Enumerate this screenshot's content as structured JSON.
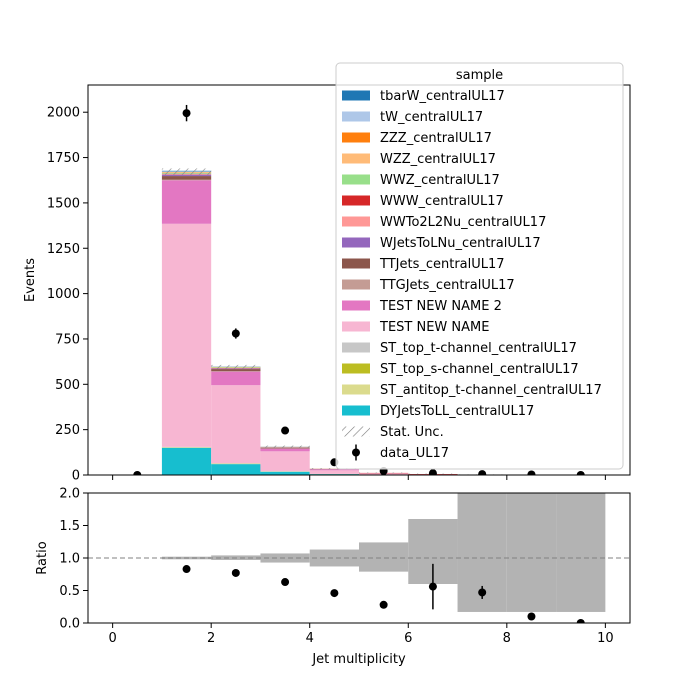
{
  "chart_data": [
    {
      "type": "bar",
      "panel": "main",
      "stacked": true,
      "xlim": [
        -0.5,
        10.5
      ],
      "ylim": [
        0,
        2150
      ],
      "ylabel": "Events",
      "xticks": [
        0,
        2,
        4,
        6,
        8,
        10
      ],
      "yticks": [
        0,
        250,
        500,
        750,
        1000,
        1250,
        1500,
        1750,
        2000
      ],
      "bin_edges": [
        0,
        1,
        2,
        3,
        4,
        5,
        6,
        7,
        8,
        9,
        10
      ],
      "legend": {
        "title": "sample",
        "placement": "top-right"
      },
      "series": [
        {
          "name": "DYJetsToLL_centralUL17",
          "color": "#17becf",
          "values": [
            0,
            150,
            60,
            18,
            5,
            2,
            1,
            0.5,
            0,
            0
          ]
        },
        {
          "name": "ST_antitop_t-channel_centralUL17",
          "color": "#dbdb8d",
          "values": [
            0,
            2,
            2,
            1,
            0.5,
            0,
            0,
            0,
            0,
            0
          ]
        },
        {
          "name": "ST_top_s-channel_centralUL17",
          "color": "#bcbd22",
          "values": [
            0,
            1,
            1,
            0.5,
            0,
            0,
            0,
            0,
            0,
            0
          ]
        },
        {
          "name": "ST_top_t-channel_centralUL17",
          "color": "#c7c7c7",
          "values": [
            0,
            2,
            2,
            1,
            0.5,
            0,
            0,
            0,
            0,
            0
          ]
        },
        {
          "name": "TEST NEW NAME",
          "color": "#f7b6d2",
          "values": [
            0,
            1230,
            430,
            110,
            20,
            6,
            2,
            0.8,
            0,
            0
          ]
        },
        {
          "name": "TEST NEW NAME 2",
          "color": "#e377c2",
          "values": [
            0,
            240,
            75,
            15,
            5,
            1,
            0.5,
            0,
            0,
            0
          ]
        },
        {
          "name": "TTGJets_centralUL17",
          "color": "#c49c94",
          "values": [
            0,
            3,
            2,
            1,
            0.5,
            0,
            0,
            0,
            0,
            0
          ]
        },
        {
          "name": "TTJets_centralUL17",
          "color": "#8c564b",
          "values": [
            0,
            20,
            12,
            4,
            1,
            0.5,
            0,
            0,
            0,
            0
          ]
        },
        {
          "name": "WJetsToLNu_centralUL17",
          "color": "#9467bd",
          "values": [
            0,
            8,
            3,
            1,
            0.5,
            0,
            0,
            0,
            0,
            0
          ]
        },
        {
          "name": "WWTo2L2Nu_centralUL17",
          "color": "#ff9896",
          "values": [
            0,
            4,
            2,
            0.5,
            0,
            0,
            0,
            0,
            0,
            0
          ]
        },
        {
          "name": "WWW_centralUL17",
          "color": "#d62728",
          "values": [
            0,
            1,
            1,
            1,
            1,
            2,
            2,
            0.5,
            0,
            0
          ]
        },
        {
          "name": "WWZ_centralUL17",
          "color": "#98df8a",
          "values": [
            0,
            5,
            3,
            1,
            0.5,
            0,
            0,
            0,
            0,
            0
          ]
        },
        {
          "name": "WZZ_centralUL17",
          "color": "#ffbb78",
          "values": [
            0,
            3,
            2,
            0.5,
            0,
            0,
            0,
            0,
            0,
            0
          ]
        },
        {
          "name": "ZZZ_centralUL17",
          "color": "#ff7f0e",
          "values": [
            0,
            2,
            1,
            0.5,
            0,
            0,
            0,
            0,
            0,
            0
          ]
        },
        {
          "name": "tW_centralUL17",
          "color": "#aec7e8",
          "values": [
            0,
            3,
            1,
            0.5,
            0,
            0,
            0,
            0,
            0,
            0
          ]
        },
        {
          "name": "tbarW_centralUL17",
          "color": "#1f77b4",
          "values": [
            0,
            3,
            1,
            0.5,
            0,
            0,
            0,
            0,
            0,
            0
          ]
        }
      ],
      "stat_unc": {
        "name": "Stat. Unc.",
        "down": [
          0,
          1655,
          585,
          150,
          32,
          9,
          4,
          1.2,
          0,
          0
        ],
        "up": [
          0,
          1690,
          607,
          162,
          38,
          14,
          8,
          3.5,
          0,
          0
        ]
      },
      "data": {
        "name": "data_UL17",
        "x": [
          0.5,
          1.5,
          2.5,
          3.5,
          4.5,
          5.5,
          6.5,
          7.5,
          8.5,
          9.5
        ],
        "y": [
          0,
          1995,
          780,
          245,
          70,
          22,
          10,
          5,
          3,
          0
        ],
        "err": [
          0,
          45,
          28,
          16,
          8,
          5,
          3,
          2,
          2,
          0
        ]
      },
      "legend_order": [
        "tbarW_centralUL17",
        "tW_centralUL17",
        "ZZZ_centralUL17",
        "WZZ_centralUL17",
        "WWZ_centralUL17",
        "WWW_centralUL17",
        "WWTo2L2Nu_centralUL17",
        "WJetsToLNu_centralUL17",
        "TTJets_centralUL17",
        "TTGJets_centralUL17",
        "TEST NEW NAME 2",
        "TEST NEW NAME",
        "ST_top_t-channel_centralUL17",
        "ST_top_s-channel_centralUL17",
        "ST_antitop_t-channel_centralUL17",
        "DYJetsToLL_centralUL17",
        "Stat. Unc.",
        "data_UL17"
      ]
    },
    {
      "type": "scatter",
      "panel": "ratio",
      "xlim": [
        -0.5,
        10.5
      ],
      "ylim": [
        0,
        2.0
      ],
      "xlabel": "Jet multiplicity",
      "ylabel": "Ratio",
      "xticks": [
        0,
        2,
        4,
        6,
        8,
        10
      ],
      "yticks": [
        0.0,
        0.5,
        1.0,
        1.5,
        2.0
      ],
      "reference_line": 1.0,
      "unc_band": {
        "bin_edges": [
          0,
          1,
          2,
          3,
          4,
          5,
          6,
          7,
          8,
          9,
          10
        ],
        "down": [
          null,
          0.98,
          0.97,
          0.93,
          0.87,
          0.79,
          0.6,
          0.17,
          0.17,
          0.17
        ],
        "up": [
          null,
          1.02,
          1.04,
          1.07,
          1.13,
          1.24,
          1.6,
          2.0,
          2.0,
          2.0
        ]
      },
      "x": [
        1.5,
        2.5,
        3.5,
        4.5,
        5.5,
        6.5,
        7.5,
        8.5,
        9.5
      ],
      "y": [
        0.83,
        0.77,
        0.63,
        0.46,
        0.28,
        0.56,
        0.47,
        0.1,
        0.0
      ],
      "err": [
        0.02,
        0.03,
        0.04,
        0.05,
        0.05,
        0.35,
        0.1,
        0.03,
        0.0
      ]
    }
  ]
}
